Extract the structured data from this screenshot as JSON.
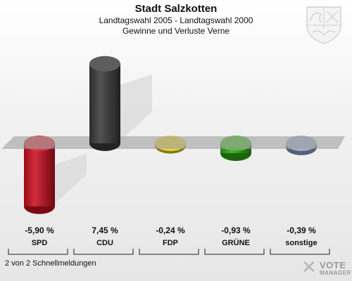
{
  "header": {
    "title": "Stadt Salzkotten",
    "subtitle": "Landtagswahl 2005 - Landtagswahl 2000",
    "subtitle2": "Gewinne und Verluste Verne"
  },
  "footer": {
    "text": "2 von 2 Schnellmeldungen"
  },
  "brand": {
    "mark": "✕",
    "word1": "VOTE",
    "word2": "MANAGER"
  },
  "icons": {
    "crest": "coat-of-arms-icon"
  },
  "chart_data": {
    "type": "bar",
    "title": "Gewinne und Verluste Verne",
    "categories": [
      "SPD",
      "CDU",
      "FDP",
      "GRÜNE",
      "sonstige"
    ],
    "values": [
      -5.9,
      7.45,
      -0.24,
      -0.93,
      -0.39
    ],
    "value_labels": [
      "-5,90 %",
      "7,45 %",
      "-0,24 %",
      "-0,93 %",
      "-0,39 %"
    ],
    "colors": [
      "#cc0f1f",
      "#3a3a3a",
      "#e0cc1c",
      "#2ea812",
      "#8f9ec6"
    ],
    "ylim": [
      -6,
      8
    ],
    "grid": false
  }
}
